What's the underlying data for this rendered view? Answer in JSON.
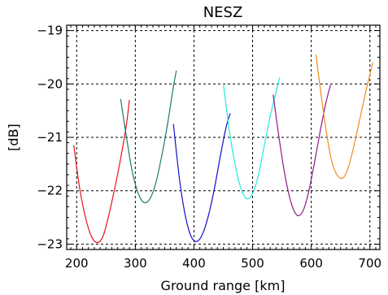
{
  "chart_data": {
    "type": "line",
    "title": "NESZ",
    "xlabel": "Ground range [km]",
    "ylabel": "[dB]",
    "xlim": [
      183,
      717
    ],
    "ylim": [
      -23.1,
      -18.9
    ],
    "xticks": [
      200,
      300,
      400,
      500,
      600,
      700
    ],
    "yticks": [
      -23,
      -22,
      -21,
      -20,
      -19
    ],
    "x_tick_labels": [
      "200",
      "300",
      "400",
      "500",
      "600",
      "700"
    ],
    "y_tick_labels": [
      "−23",
      "−22",
      "−21",
      "−20",
      "−19"
    ],
    "grid": true,
    "grid_style": "dotted",
    "series": [
      {
        "color": "#e8141c",
        "x": [
          195,
          205,
          215,
          225,
          235,
          245,
          255,
          265,
          275,
          285,
          290
        ],
        "y": [
          -21.15,
          -21.95,
          -22.5,
          -22.85,
          -22.97,
          -22.85,
          -22.45,
          -21.95,
          -21.4,
          -20.75,
          -20.3
        ]
      },
      {
        "color": "#1a7a6e",
        "x": [
          275,
          285,
          295,
          305,
          315,
          325,
          335,
          345,
          355,
          365,
          370
        ],
        "y": [
          -20.28,
          -21.0,
          -21.65,
          -22.05,
          -22.22,
          -22.15,
          -21.85,
          -21.35,
          -20.75,
          -20.05,
          -19.75
        ]
      },
      {
        "color": "#1010cc",
        "x": [
          365,
          375,
          385,
          395,
          405,
          415,
          425,
          435,
          445,
          455,
          462
        ],
        "y": [
          -20.75,
          -21.75,
          -22.45,
          -22.85,
          -22.95,
          -22.8,
          -22.45,
          -21.95,
          -21.35,
          -20.8,
          -20.55
        ]
      },
      {
        "color": "#26e8e0",
        "x": [
          450,
          460,
          470,
          480,
          490,
          500,
          510,
          520,
          530,
          540,
          546
        ],
        "y": [
          -19.98,
          -20.85,
          -21.5,
          -21.95,
          -22.15,
          -22.05,
          -21.7,
          -21.15,
          -20.6,
          -20.15,
          -19.88
        ]
      },
      {
        "color": "#8c1a8c",
        "x": [
          535,
          545,
          555,
          565,
          575,
          585,
          595,
          605,
          615,
          625,
          633
        ],
        "y": [
          -20.2,
          -21.0,
          -21.7,
          -22.2,
          -22.45,
          -22.4,
          -22.05,
          -21.5,
          -20.9,
          -20.35,
          -20.02
        ]
      },
      {
        "color": "#f28c1a",
        "x": [
          608,
          615,
          625,
          635,
          645,
          655,
          665,
          675,
          685,
          695,
          705
        ],
        "y": [
          -19.45,
          -20.05,
          -20.85,
          -21.45,
          -21.72,
          -21.75,
          -21.5,
          -21.05,
          -20.55,
          -20.05,
          -19.6
        ]
      }
    ]
  }
}
